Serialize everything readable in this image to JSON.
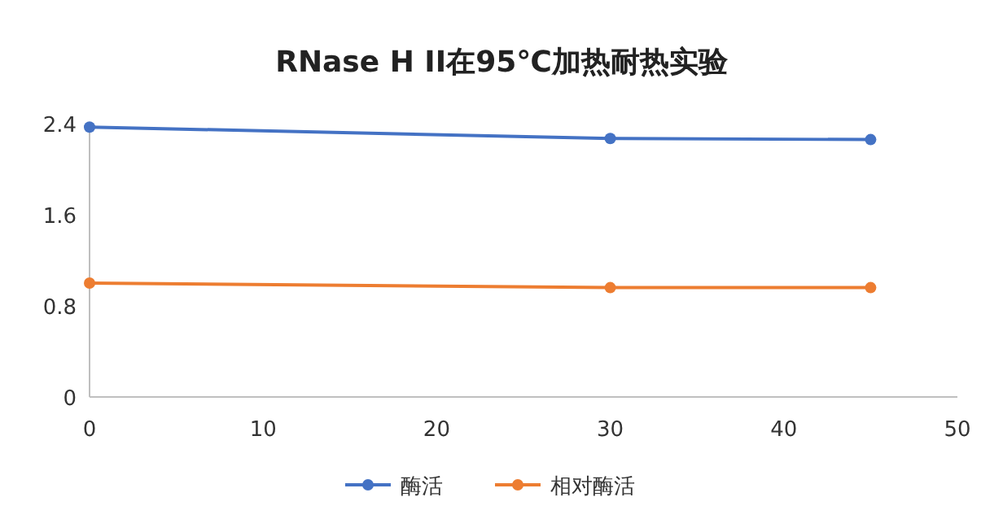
{
  "chart_data": {
    "type": "line",
    "title": "RNase H II在95℃加热耐热实验",
    "x": [
      0,
      30,
      45
    ],
    "series": [
      {
        "name": "酶活",
        "color": "#4472c4",
        "values": [
          2.37,
          2.27,
          2.26
        ]
      },
      {
        "name": "相对酶活",
        "color": "#ed7d31",
        "values": [
          1.0,
          0.96,
          0.96
        ]
      }
    ],
    "xlim": [
      0,
      50
    ],
    "xticks": [
      0,
      10,
      20,
      30,
      40,
      50
    ],
    "ylim": [
      0,
      2.4
    ],
    "yticks": [
      0,
      0.8,
      1.6,
      2.4
    ],
    "grid": false,
    "legend": "bottom",
    "marker": "circle",
    "line_style": "solid"
  }
}
